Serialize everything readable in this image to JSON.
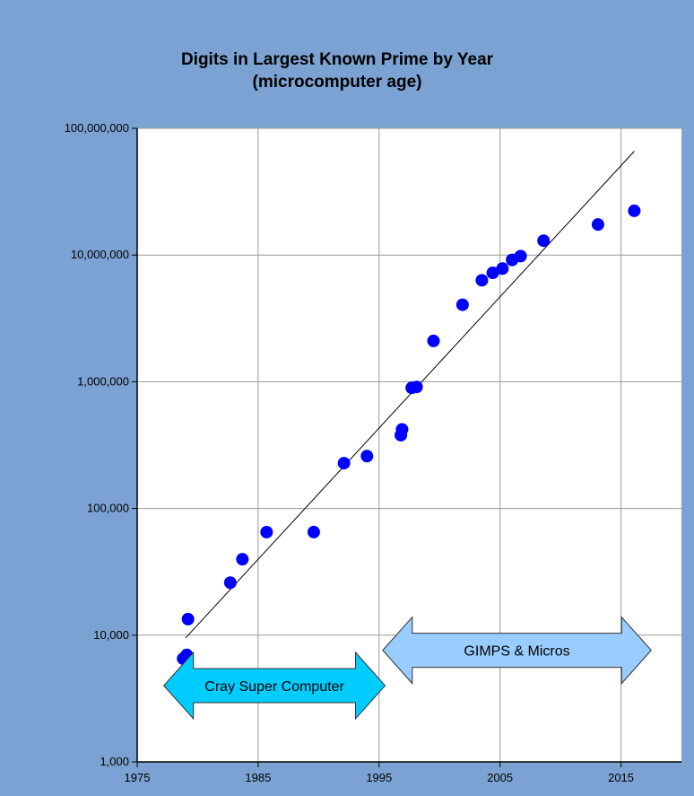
{
  "chart_data": {
    "type": "scatter",
    "title": "Digits in Largest Known Prime by Year",
    "subtitle": "(microcomputer age)",
    "xlabel": "",
    "ylabel": "",
    "y_scale": "log",
    "xlim": [
      1975,
      2020
    ],
    "ylim": [
      1000,
      100000000
    ],
    "x_ticks": [
      1975,
      1985,
      1995,
      2005,
      2015
    ],
    "x_tick_labels": [
      "1975",
      "1985",
      "1995",
      "2005",
      "2015"
    ],
    "y_ticks": [
      1000,
      10000,
      100000,
      1000000,
      10000000,
      100000000
    ],
    "y_tick_labels": [
      "1,000",
      "10,000",
      "100,000",
      "1,000,000",
      "10,000,000",
      "100,000,000"
    ],
    "grid": true,
    "point_color": "#0000ff",
    "series": [
      {
        "points": [
          [
            1978.8,
            6533
          ],
          [
            1979.1,
            6987
          ],
          [
            1979.2,
            13395
          ],
          [
            1982.7,
            25962
          ],
          [
            1983.7,
            39751
          ],
          [
            1985.7,
            65050
          ],
          [
            1989.6,
            65087
          ],
          [
            1992.1,
            227832
          ],
          [
            1994.0,
            258716
          ],
          [
            1996.8,
            378632
          ],
          [
            1996.9,
            420921
          ],
          [
            1997.7,
            895932
          ],
          [
            1998.1,
            909526
          ],
          [
            1999.5,
            2098960
          ],
          [
            2001.9,
            4053946
          ],
          [
            2003.5,
            6320430
          ],
          [
            2004.4,
            7235733
          ],
          [
            2005.2,
            7816230
          ],
          [
            2006.0,
            9152052
          ],
          [
            2006.7,
            9808358
          ],
          [
            2008.6,
            12978189
          ],
          [
            2013.1,
            17425170
          ],
          [
            2016.1,
            22338618
          ]
        ]
      }
    ],
    "trendline": {
      "x": [
        1979,
        2016.1
      ],
      "y": [
        9500,
        66000000
      ],
      "color": "#000000"
    },
    "annotations": [
      {
        "label": "Cray Super Computer",
        "x_start": 1977.2,
        "x_end": 1995.5,
        "y": 4000,
        "fill": "#00ccff"
      },
      {
        "label": "GIMPS &  Micros",
        "x_start": 1995.3,
        "x_end": 2017.5,
        "y": 7600,
        "fill": "#99ccff"
      }
    ]
  }
}
